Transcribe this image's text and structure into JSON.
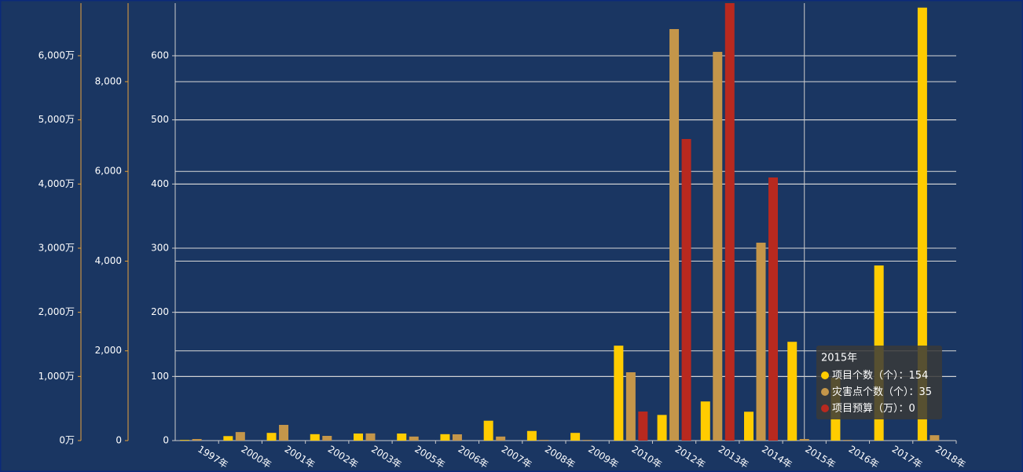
{
  "chart_data": {
    "type": "bar",
    "categories": [
      "1997年",
      "2000年",
      "2001年",
      "2002年",
      "2003年",
      "2005年",
      "2006年",
      "2007年",
      "2008年",
      "2009年",
      "2010年",
      "2012年",
      "2013年",
      "2014年",
      "2015年",
      "2016年",
      "2017年",
      "2018年"
    ],
    "series": [
      {
        "name": "项目个数（个）",
        "color": "#ffcc00",
        "axis": "y",
        "values": [
          1,
          7,
          12,
          10,
          11,
          11,
          10,
          31,
          15,
          12,
          148,
          40,
          61,
          45,
          154,
          98,
          273,
          675
        ]
      },
      {
        "name": "灾害点个数（个）",
        "color": "#c4964a",
        "axis": "y2",
        "values": [
          35,
          190,
          350,
          105,
          160,
          90,
          140,
          90,
          15,
          15,
          1523,
          9172,
          8664,
          4411,
          35,
          15,
          0,
          120
        ]
      },
      {
        "name": "项目预算（万）",
        "color": "#b8291f",
        "axis": "y3",
        "values": [
          0,
          0,
          0,
          0,
          0,
          0,
          0,
          0,
          0,
          0,
          453,
          4702,
          6820,
          4102,
          0,
          0,
          0,
          0
        ]
      }
    ],
    "ylim": [
      0,
      682
    ],
    "yticks": [
      0,
      100,
      200,
      300,
      400,
      500,
      600
    ],
    "y2lim": [
      0,
      9750
    ],
    "y2ticks": [
      0,
      {
        "value": 2000,
        "label": "2,000"
      },
      {
        "value": 4000,
        "label": "4,000"
      },
      {
        "value": 6000,
        "label": "6,000"
      },
      {
        "value": 8000,
        "label": "8,000"
      }
    ],
    "y3lim": [
      0,
      6820
    ],
    "y3ticks": [
      {
        "value": 0,
        "label": "0万"
      },
      {
        "value": 1000,
        "label": "1,000万"
      },
      {
        "value": 2000,
        "label": "2,000万"
      },
      {
        "value": 3000,
        "label": "3,000万"
      },
      {
        "value": 4000,
        "label": "4,000万"
      },
      {
        "value": 5000,
        "label": "5,000万"
      },
      {
        "value": 6000,
        "label": "6,000万"
      }
    ],
    "grid": true,
    "tooltip_separator": "："
  }
}
